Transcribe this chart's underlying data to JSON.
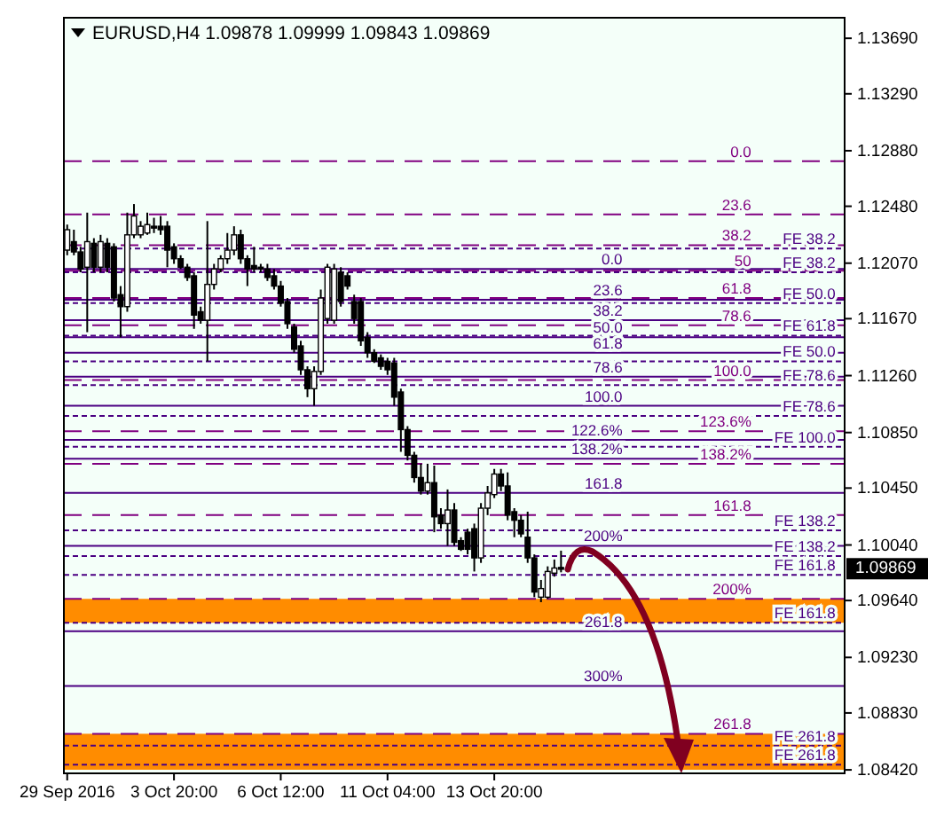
{
  "chart_data": {
    "type": "candlestick",
    "title": "EURUSD,H4 1.09878 1.09999 1.09843 1.09869",
    "categories": [
      "29 Sep 2016",
      null,
      null,
      null,
      null,
      null,
      null,
      null,
      null,
      null,
      null,
      null,
      null,
      null,
      null,
      null,
      "3 Oct 20:00",
      null,
      null,
      null,
      null,
      null,
      null,
      null,
      null,
      null,
      null,
      null,
      null,
      null,
      null,
      null,
      "6 Oct 12:00",
      null,
      null,
      null,
      null,
      null,
      null,
      null,
      null,
      null,
      null,
      null,
      null,
      null,
      null,
      null,
      "11 Oct 04:00",
      null,
      null,
      null,
      null,
      null,
      null,
      null,
      null,
      null,
      null,
      null,
      null,
      null,
      null,
      null,
      "13 Oct 20:00",
      null,
      null,
      null,
      null,
      null,
      null,
      null,
      null,
      null,
      null,
      null,
      null,
      null,
      null,
      null,
      null,
      null,
      null,
      null,
      null,
      null,
      null,
      null,
      null,
      null,
      null,
      null,
      null,
      null,
      null,
      null,
      null,
      null,
      null,
      null,
      null,
      null,
      null,
      null,
      null,
      null,
      null,
      null,
      null,
      null,
      null,
      null,
      null,
      null,
      null,
      null,
      null
    ],
    "ohlc": [
      [
        1.12164,
        1.12348,
        1.12127,
        1.12311
      ],
      [
        1.12225,
        1.12311,
        1.12127,
        1.12151
      ],
      [
        1.12151,
        1.12188,
        1.12004,
        1.12028
      ],
      [
        1.12041,
        1.12434,
        1.11573,
        1.12225
      ],
      [
        1.12213,
        1.1225,
        1.12004,
        1.12041
      ],
      [
        1.12041,
        1.12274,
        1.12004,
        1.12225
      ],
      [
        1.12213,
        1.1225,
        1.12004,
        1.12041
      ],
      [
        1.12188,
        1.12213,
        1.11794,
        1.11819
      ],
      [
        1.11843,
        1.11905,
        1.11536,
        1.11757
      ],
      [
        1.11757,
        1.12434,
        1.1172,
        1.12274
      ],
      [
        1.12274,
        1.12496,
        1.1225,
        1.1241
      ],
      [
        1.12274,
        1.12373,
        1.1225,
        1.12336
      ],
      [
        1.12287,
        1.12434,
        1.12274,
        1.12348
      ],
      [
        1.12336,
        1.12397,
        1.12287,
        1.12323
      ],
      [
        1.12336,
        1.1241,
        1.12274,
        1.12311
      ],
      [
        1.12336,
        1.12373,
        1.12041,
        1.12164
      ],
      [
        1.12188,
        1.12213,
        1.12065,
        1.12102
      ],
      [
        1.12102,
        1.12127,
        1.12028,
        1.12041
      ],
      [
        1.12041,
        1.12065,
        1.11942,
        1.11967
      ],
      [
        1.11979,
        1.12004,
        1.11597,
        1.11696
      ],
      [
        1.1172,
        1.11757,
        1.11634,
        1.11659
      ],
      [
        1.11659,
        1.12373,
        1.11363,
        1.11917
      ],
      [
        1.11917,
        1.12065,
        1.1188,
        1.12028
      ],
      [
        1.12028,
        1.12127,
        1.12004,
        1.12102
      ],
      [
        1.12102,
        1.12287,
        1.12065,
        1.12164
      ],
      [
        1.12164,
        1.12336,
        1.12127,
        1.12274
      ],
      [
        1.12274,
        1.12311,
        1.12065,
        1.12102
      ],
      [
        1.12102,
        1.12127,
        1.11905,
        1.12028
      ],
      [
        1.12053,
        1.12188,
        1.12004,
        1.12028
      ],
      [
        1.12041,
        1.12065,
        1.12004,
        1.12028
      ],
      [
        1.12028,
        1.12065,
        1.11942,
        1.11967
      ],
      [
        1.11979,
        1.12028,
        1.1188,
        1.11905
      ],
      [
        1.11905,
        1.11942,
        1.11757,
        1.11782
      ],
      [
        1.11794,
        1.11819,
        1.11597,
        1.11634
      ],
      [
        1.1161,
        1.11634,
        1.11425,
        1.1145
      ],
      [
        1.11474,
        1.11511,
        1.11265,
        1.11302
      ],
      [
        1.11302,
        1.11327,
        1.11105,
        1.11166
      ],
      [
        1.11166,
        1.11327,
        1.11043,
        1.1129
      ],
      [
        1.1129,
        1.1188,
        1.11265,
        1.11819
      ],
      [
        1.11671,
        1.12065,
        1.11634,
        1.12041
      ],
      [
        1.11659,
        1.12065,
        1.11634,
        1.12028
      ],
      [
        1.12004,
        1.12041,
        1.11757,
        1.11794
      ],
      [
        1.11979,
        1.12004,
        1.1188,
        1.11905
      ],
      [
        1.11794,
        1.11843,
        1.11634,
        1.11671
      ],
      [
        1.11794,
        1.11819,
        1.11474,
        1.11511
      ],
      [
        1.11536,
        1.11573,
        1.11388,
        1.11425
      ],
      [
        1.11425,
        1.1145,
        1.11351,
        1.11363
      ],
      [
        1.11388,
        1.11413,
        1.11302,
        1.11327
      ],
      [
        1.11363,
        1.11388,
        1.11265,
        1.11302
      ],
      [
        1.11351,
        1.11388,
        1.11043,
        1.11105
      ],
      [
        1.11142,
        1.11166,
        1.10711,
        1.10871
      ],
      [
        1.10871,
        1.10896,
        1.10649,
        1.10686
      ],
      [
        1.10686,
        1.10711,
        1.10489,
        1.10526
      ],
      [
        1.10526,
        1.10625,
        1.10403,
        1.10428
      ],
      [
        1.10428,
        1.10625,
        1.10403,
        1.10489
      ],
      [
        1.10489,
        1.10612,
        1.10132,
        1.10243
      ],
      [
        1.10255,
        1.10305,
        1.10157,
        1.10194
      ],
      [
        1.10194,
        1.1044,
        1.10034,
        1.10292
      ],
      [
        1.10292,
        1.10342,
        1.10034,
        1.10059
      ],
      [
        1.10071,
        1.10096,
        1.09997,
        1.10009
      ],
      [
        1.10132,
        1.10157,
        1.09972,
        1.10009
      ],
      [
        1.10157,
        1.10194,
        1.09849,
        1.09947
      ],
      [
        1.09947,
        1.10342,
        1.09911,
        1.10305
      ],
      [
        1.10305,
        1.10465,
        1.10255,
        1.10415
      ],
      [
        1.10403,
        1.10588,
        1.10378,
        1.10551
      ],
      [
        1.10551,
        1.10588,
        1.10428,
        1.10465
      ],
      [
        1.10465,
        1.10563,
        1.10218,
        1.10255
      ],
      [
        1.1028,
        1.10305,
        1.10096,
        1.10218
      ],
      [
        1.10218,
        1.10255,
        1.10096,
        1.1012
      ],
      [
        1.10096,
        1.1028,
        1.09911,
        1.09947
      ],
      [
        1.09947,
        1.09972,
        1.09664,
        1.09701
      ],
      [
        1.09664,
        1.09788,
        1.09628,
        1.09726
      ],
      [
        1.09664,
        1.09886,
        1.09652,
        1.09849
      ],
      [
        1.09837,
        1.09935,
        1.09812,
        1.09874
      ],
      [
        1.09878,
        1.09999,
        1.09843,
        1.09869
      ],
      null,
      null,
      null,
      null,
      null,
      null,
      null,
      null,
      null,
      null,
      null,
      null,
      null,
      null,
      null,
      null,
      null,
      null,
      null,
      null,
      null,
      null,
      null,
      null,
      null,
      null,
      null,
      null,
      null,
      null,
      null,
      null,
      null,
      null,
      null,
      null,
      null,
      null,
      null,
      null,
      null,
      null
    ],
    "ylim": [
      1.08395,
      1.13838
    ],
    "yticks": [
      {
        "value": 1.1369,
        "label": "1.13690"
      },
      {
        "value": 1.1329,
        "label": "1.13290"
      },
      {
        "value": 1.1288,
        "label": "1.12880"
      },
      {
        "value": 1.1248,
        "label": "1.12480"
      },
      {
        "value": 1.1207,
        "label": "1.12070"
      },
      {
        "value": 1.1167,
        "label": "1.11670"
      },
      {
        "value": 1.1126,
        "label": "1.11260"
      },
      {
        "value": 1.1085,
        "label": "1.10850"
      },
      {
        "value": 1.1045,
        "label": "1.10450"
      },
      {
        "value": 1.1004,
        "label": "1.10040"
      },
      {
        "value": 1.0964,
        "label": "1.09640"
      },
      {
        "value": 1.0923,
        "label": "1.09230"
      },
      {
        "value": 1.0883,
        "label": "1.08830"
      },
      {
        "value": 1.0842,
        "label": "1.08420"
      }
    ],
    "grid": false,
    "ref_lines": [
      {
        "axis": "y",
        "value": 1.12804,
        "color": "#800080",
        "line_style": "dashed"
      },
      {
        "axis": "y",
        "value": 1.12422,
        "color": "#800080",
        "line_style": "dashed"
      },
      {
        "axis": "y",
        "value": 1.122,
        "color": "#800080",
        "line_style": "dashed"
      },
      {
        "axis": "y",
        "value": 1.12016,
        "color": "#800080",
        "line_style": "dashed"
      },
      {
        "axis": "y",
        "value": 1.11819,
        "color": "#800080",
        "line_style": "dashed"
      },
      {
        "axis": "y",
        "value": 1.11622,
        "color": "#800080",
        "line_style": "dashed"
      },
      {
        "axis": "y",
        "value": 1.11228,
        "color": "#800080",
        "line_style": "dashed"
      },
      {
        "axis": "y",
        "value": 1.10859,
        "color": "#800080",
        "line_style": "dashed"
      },
      {
        "axis": "y",
        "value": 1.10625,
        "color": "#800080",
        "line_style": "dashed"
      },
      {
        "axis": "y",
        "value": 1.10255,
        "color": "#800080",
        "line_style": "dashed"
      },
      {
        "axis": "y",
        "value": 1.09652,
        "color": "#800080",
        "line_style": "dashed"
      },
      {
        "axis": "y",
        "value": 1.0868,
        "color": "#800080",
        "line_style": "dashed"
      },
      {
        "axis": "y",
        "value": 1.12028,
        "color": "#4b0082",
        "line_style": "solid"
      },
      {
        "axis": "y",
        "value": 1.11807,
        "color": "#4b0082",
        "line_style": "solid"
      },
      {
        "axis": "y",
        "value": 1.11659,
        "color": "#4b0082",
        "line_style": "solid"
      },
      {
        "axis": "y",
        "value": 1.11536,
        "color": "#4b0082",
        "line_style": "solid"
      },
      {
        "axis": "y",
        "value": 1.11425,
        "color": "#4b0082",
        "line_style": "solid"
      },
      {
        "axis": "y",
        "value": 1.11253,
        "color": "#4b0082",
        "line_style": "solid"
      },
      {
        "axis": "y",
        "value": 1.11043,
        "color": "#4b0082",
        "line_style": "solid"
      },
      {
        "axis": "y",
        "value": 1.10797,
        "color": "#4b0082",
        "line_style": "solid"
      },
      {
        "axis": "y",
        "value": 1.10662,
        "color": "#4b0082",
        "line_style": "solid"
      },
      {
        "axis": "y",
        "value": 1.10415,
        "color": "#4b0082",
        "line_style": "solid"
      },
      {
        "axis": "y",
        "value": 1.10034,
        "color": "#4b0082",
        "line_style": "solid"
      },
      {
        "axis": "y",
        "value": 1.09418,
        "color": "#4b0082",
        "line_style": "solid"
      },
      {
        "axis": "y",
        "value": 1.09025,
        "color": "#4b0082",
        "line_style": "solid"
      },
      {
        "axis": "y",
        "value": 1.12176,
        "color": "#4b0082",
        "line_style": "dotted"
      },
      {
        "axis": "y",
        "value": 1.12004,
        "color": "#4b0082",
        "line_style": "dotted"
      },
      {
        "axis": "y",
        "value": 1.11782,
        "color": "#4b0082",
        "line_style": "dotted"
      },
      {
        "axis": "y",
        "value": 1.11548,
        "color": "#4b0082",
        "line_style": "dotted"
      },
      {
        "axis": "y",
        "value": 1.11363,
        "color": "#4b0082",
        "line_style": "dotted"
      },
      {
        "axis": "y",
        "value": 1.11191,
        "color": "#4b0082",
        "line_style": "dotted"
      },
      {
        "axis": "y",
        "value": 1.1097,
        "color": "#4b0082",
        "line_style": "dotted"
      },
      {
        "axis": "y",
        "value": 1.10748,
        "color": "#4b0082",
        "line_style": "dotted"
      },
      {
        "axis": "y",
        "value": 1.10145,
        "color": "#4b0082",
        "line_style": "dotted"
      },
      {
        "axis": "y",
        "value": 1.0996,
        "color": "#4b0082",
        "line_style": "dotted"
      },
      {
        "axis": "y",
        "value": 1.09825,
        "color": "#4b0082",
        "line_style": "dotted"
      },
      {
        "axis": "y",
        "value": 1.0948,
        "color": "#4b0082",
        "line_style": "dotted"
      },
      {
        "axis": "y",
        "value": 1.08594,
        "color": "#4b0082",
        "line_style": "dotted"
      },
      {
        "axis": "y",
        "value": 1.08458,
        "color": "#4b0082",
        "line_style": "dotted"
      }
    ],
    "bands": [
      {
        "axis": "y",
        "from": 1.0948,
        "to": 1.09652,
        "color": "#ff8c00"
      },
      {
        "axis": "y",
        "from": 1.08421,
        "to": 1.0868,
        "color": "#ff8c00"
      }
    ],
    "annotations": [
      {
        "text": "0.0",
        "y": 1.12804
      },
      {
        "text": "23.6",
        "y": 1.12422
      },
      {
        "text": "38.2",
        "y": 1.122
      },
      {
        "text": "50",
        "y": 1.12016
      },
      {
        "text": "61.8",
        "y": 1.11819
      },
      {
        "text": "78.6",
        "y": 1.11622
      },
      {
        "text": "100.0",
        "y": 1.11228
      },
      {
        "text": "123.6%",
        "y": 1.10859
      },
      {
        "text": "138.2%",
        "y": 1.10625
      },
      {
        "text": "161.8",
        "y": 1.10255
      },
      {
        "text": "200%",
        "y": 1.09652
      },
      {
        "text": "261.8",
        "y": 1.0868
      },
      {
        "text": "0.0",
        "y": 1.12028
      },
      {
        "text": "23.6",
        "y": 1.11807
      },
      {
        "text": "38.2",
        "y": 1.11659
      },
      {
        "text": "50.0",
        "y": 1.11536
      },
      {
        "text": "61.8",
        "y": 1.11425
      },
      {
        "text": "78.6",
        "y": 1.11253
      },
      {
        "text": "100.0",
        "y": 1.11043
      },
      {
        "text": "122.6%",
        "y": 1.10797
      },
      {
        "text": "138.2%",
        "y": 1.10662
      },
      {
        "text": "161.8",
        "y": 1.10415
      },
      {
        "text": "200%",
        "y": 1.10034
      },
      {
        "text": "261.8",
        "y": 1.09418
      },
      {
        "text": "300%",
        "y": 1.09025
      },
      {
        "text": "FE 38.2",
        "y": 1.12176
      },
      {
        "text": "FE 38.2",
        "y": 1.12004
      },
      {
        "text": "FE 50.0",
        "y": 1.11782
      },
      {
        "text": "FE 61.8",
        "y": 1.11548
      },
      {
        "text": "FE 50.0",
        "y": 1.11363
      },
      {
        "text": "FE 78.6",
        "y": 1.11191
      },
      {
        "text": "FE 78.6",
        "y": 1.1097
      },
      {
        "text": "FE 100.0",
        "y": 1.10748
      },
      {
        "text": "FE 138.2",
        "y": 1.10145
      },
      {
        "text": "FE 138.2",
        "y": 1.0996
      },
      {
        "text": "FE 161.8",
        "y": 1.09825
      },
      {
        "text": "FE 161.8",
        "y": 1.0948
      },
      {
        "text": "FE 261.8",
        "y": 1.08594
      },
      {
        "text": "FE 261.8",
        "y": 1.08458
      },
      "1.09869"
    ]
  }
}
